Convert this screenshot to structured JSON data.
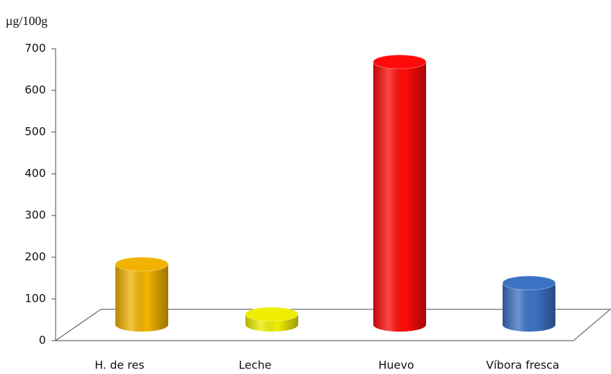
{
  "chart_data": {
    "type": "bar",
    "y_label": "µg/100g",
    "categories": [
      "H. de res",
      "Leche",
      "Huevo",
      "Víbora fresca"
    ],
    "values": [
      145,
      25,
      630,
      100
    ],
    "colors": [
      "#f2b300",
      "#f0ee00",
      "#ff0a0a",
      "#3b72c4"
    ],
    "ylim": [
      0,
      700
    ],
    "yticks": [
      0,
      100,
      200,
      300,
      400,
      500,
      600,
      700
    ],
    "grid": false
  }
}
